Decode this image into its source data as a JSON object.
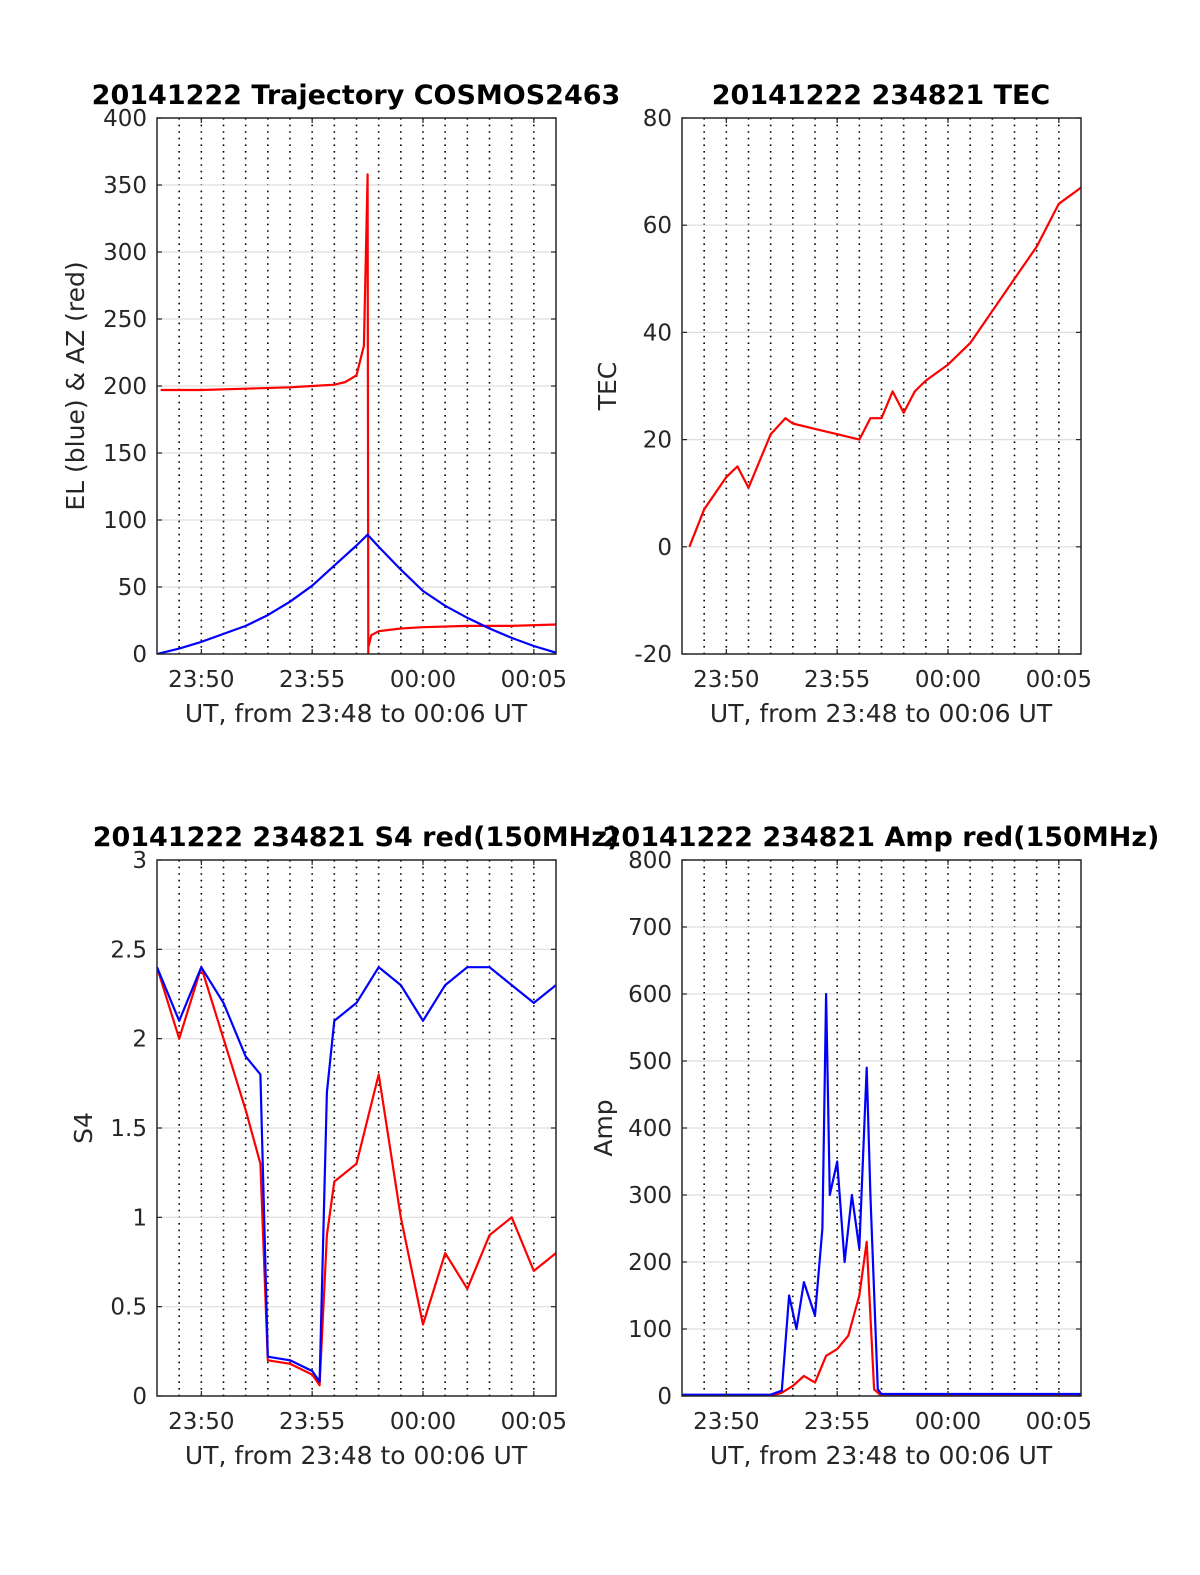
{
  "chart_data": [
    {
      "type": "line",
      "title": "20141222 Trajectory COSMOS2463",
      "xlabel": "UT, from 23:48 to 00:06 UT",
      "ylabel": "EL (blue) & AZ (red)",
      "xlim": [
        "23:48",
        "00:06"
      ],
      "ylim": [
        0,
        400
      ],
      "x_ticks": [
        "23:50",
        "23:55",
        "00:00",
        "00:05"
      ],
      "y_ticks": [
        "0",
        "50",
        "100",
        "150",
        "200",
        "250",
        "300",
        "350",
        "400"
      ],
      "grid": true,
      "series": [
        {
          "color": "#ff0000",
          "x": [
            "23:48:10",
            "23:50",
            "23:52",
            "23:54",
            "23:55",
            "23:56",
            "23:56:30",
            "23:57",
            "23:57:20",
            "23:57:30",
            "23:57:32",
            "23:57:32",
            "23:57:40",
            "23:58",
            "23:59",
            "00:00",
            "00:02",
            "00:04",
            "00:06"
          ],
          "y": [
            197,
            197,
            198,
            199,
            200,
            201,
            203,
            208,
            230,
            358,
            0,
            5,
            14,
            17,
            19,
            20,
            21,
            21,
            22
          ]
        },
        {
          "color": "#0000ff",
          "x": [
            "23:48",
            "23:49",
            "23:50",
            "23:51",
            "23:52",
            "23:53",
            "23:54",
            "23:55",
            "23:56",
            "23:57",
            "23:57:30",
            "23:58",
            "23:59",
            "00:00",
            "00:01",
            "00:02",
            "00:03",
            "00:04",
            "00:05",
            "00:06"
          ],
          "y": [
            0,
            4,
            9,
            15,
            21,
            29,
            39,
            51,
            66,
            81,
            89,
            80,
            63,
            47,
            36,
            27,
            19,
            12,
            6,
            1
          ]
        }
      ]
    },
    {
      "type": "line",
      "title": "20141222 234821 TEC",
      "xlabel": "UT, from 23:48 to 00:06 UT",
      "ylabel": "TEC",
      "xlim": [
        "23:48",
        "00:06"
      ],
      "ylim": [
        -20,
        80
      ],
      "x_ticks": [
        "23:50",
        "23:55",
        "00:00",
        "00:05"
      ],
      "y_ticks": [
        "-20",
        "0",
        "20",
        "40",
        "60",
        "80"
      ],
      "grid": true,
      "series": [
        {
          "color": "#ff0000",
          "x": [
            "23:48:20",
            "23:49",
            "23:50",
            "23:50:30",
            "23:51",
            "23:52",
            "23:52:40",
            "23:53",
            "23:54",
            "23:55",
            "23:56",
            "23:56:30",
            "23:57",
            "23:57:30",
            "23:58",
            "23:58:30",
            "23:59",
            "00:00",
            "00:01",
            "00:02",
            "00:03",
            "00:04",
            "00:05",
            "00:06"
          ],
          "y": [
            0,
            7,
            13,
            15,
            11,
            21,
            24,
            23,
            22,
            21,
            20,
            24,
            24,
            29,
            25,
            29,
            31,
            34,
            38,
            44,
            50,
            56,
            64,
            67
          ]
        }
      ]
    },
    {
      "type": "line",
      "title": "20141222 234821 S4 red(150MHz)",
      "xlabel": "UT, from 23:48 to 00:06 UT",
      "ylabel": "S4",
      "xlim": [
        "23:48",
        "00:06"
      ],
      "ylim": [
        0,
        3
      ],
      "x_ticks": [
        "23:50",
        "23:55",
        "00:00",
        "00:05"
      ],
      "y_ticks": [
        "0",
        "0.5",
        "1",
        "1.5",
        "2",
        "2.5",
        "3"
      ],
      "grid": true,
      "series": [
        {
          "color": "#ff0000",
          "x": [
            "23:48",
            "23:49",
            "23:50",
            "23:51",
            "23:52",
            "23:52:40",
            "23:53",
            "23:54",
            "23:55",
            "23:55:20",
            "23:55:40",
            "23:56",
            "23:57",
            "23:58",
            "23:59",
            "00:00",
            "00:01",
            "00:02",
            "00:03",
            "00:04",
            "00:05",
            "00:06"
          ],
          "y": [
            2.4,
            2.0,
            2.4,
            2.0,
            1.6,
            1.3,
            0.2,
            0.18,
            0.12,
            0.06,
            0.9,
            1.2,
            1.3,
            1.8,
            1.0,
            0.4,
            0.8,
            0.6,
            0.9,
            1.0,
            0.7,
            0.8
          ]
        },
        {
          "color": "#0000ff",
          "x": [
            "23:48",
            "23:49",
            "23:50",
            "23:51",
            "23:52",
            "23:52:40",
            "23:53",
            "23:54",
            "23:55",
            "23:55:20",
            "23:55:40",
            "23:56",
            "23:57",
            "23:58",
            "23:59",
            "00:00",
            "00:01",
            "00:02",
            "00:03",
            "00:04",
            "00:05",
            "00:06"
          ],
          "y": [
            2.4,
            2.1,
            2.4,
            2.2,
            1.9,
            1.8,
            0.22,
            0.2,
            0.14,
            0.08,
            1.7,
            2.1,
            2.2,
            2.4,
            2.3,
            2.1,
            2.3,
            2.4,
            2.4,
            2.3,
            2.2,
            2.3
          ]
        }
      ]
    },
    {
      "type": "line",
      "title": "20141222 234821 Amp red(150MHz)",
      "xlabel": "UT, from 23:48 to 00:06 UT",
      "ylabel": "Amp",
      "xlim": [
        "23:48",
        "00:06"
      ],
      "ylim": [
        0,
        800
      ],
      "x_ticks": [
        "23:50",
        "23:55",
        "00:00",
        "00:05"
      ],
      "y_ticks": [
        "0",
        "100",
        "200",
        "300",
        "400",
        "500",
        "600",
        "700",
        "800"
      ],
      "grid": true,
      "series": [
        {
          "color": "#ff0000",
          "x": [
            "23:48",
            "23:52",
            "23:52:30",
            "23:53",
            "23:53:30",
            "23:54",
            "23:54:30",
            "23:55",
            "23:55:30",
            "23:56",
            "23:56:20",
            "23:56:40",
            "23:57",
            "00:06"
          ],
          "y": [
            0,
            0,
            5,
            15,
            30,
            20,
            60,
            70,
            90,
            150,
            230,
            10,
            0,
            0
          ]
        },
        {
          "color": "#0000ff",
          "x": [
            "23:48",
            "23:52",
            "23:52:30",
            "23:52:50",
            "23:53:10",
            "23:53:30",
            "23:54",
            "23:54:20",
            "23:54:30",
            "23:54:40",
            "23:55",
            "23:55:20",
            "23:55:40",
            "23:56",
            "23:56:20",
            "23:56:30",
            "23:56:50",
            "23:57",
            "00:06"
          ],
          "y": [
            2,
            2,
            8,
            150,
            100,
            170,
            120,
            250,
            600,
            300,
            350,
            200,
            300,
            220,
            490,
            300,
            10,
            3,
            3
          ]
        }
      ]
    }
  ]
}
